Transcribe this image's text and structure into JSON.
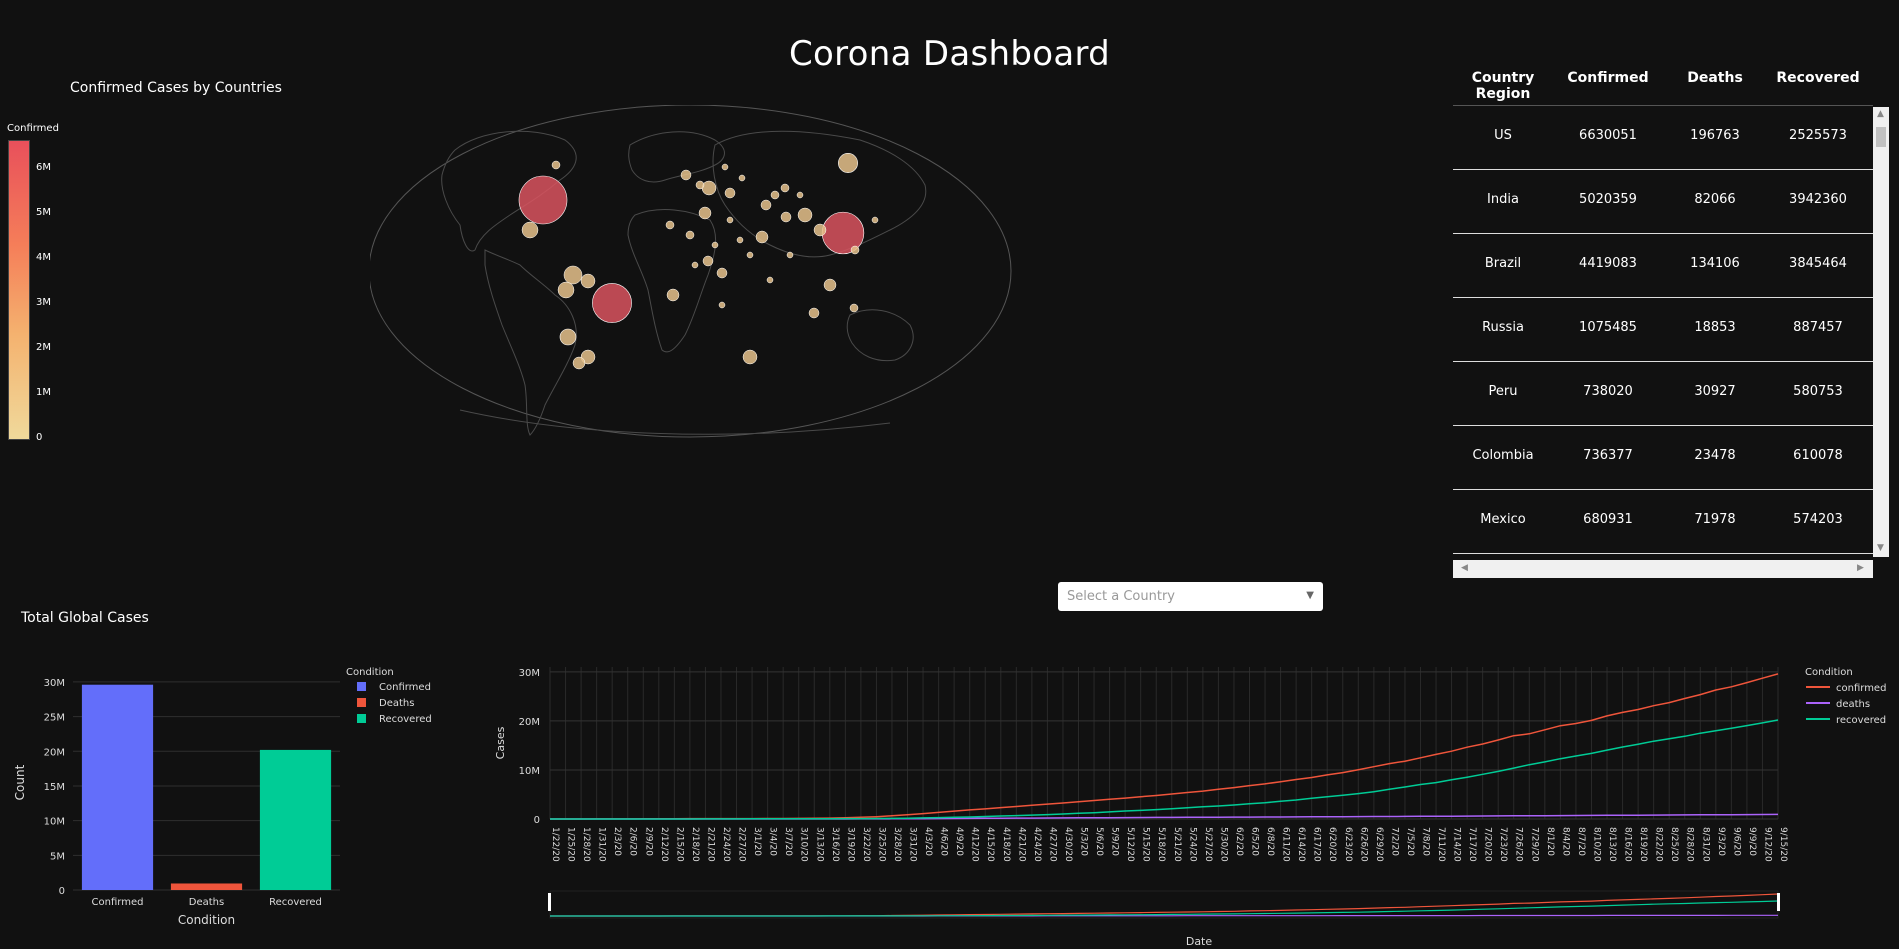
{
  "header": {
    "title": "Corona Dashboard"
  },
  "map": {
    "title": "Confirmed Cases by Countries",
    "colorbar_title": "Confirmed",
    "colorbar_ticks": [
      "6M",
      "5M",
      "4M",
      "3M",
      "2M",
      "1M",
      "0"
    ]
  },
  "table": {
    "columns": [
      "Country Region",
      "Confirmed",
      "Deaths",
      "Recovered"
    ],
    "rows": [
      [
        "US",
        "6630051",
        "196763",
        "2525573"
      ],
      [
        "India",
        "5020359",
        "82066",
        "3942360"
      ],
      [
        "Brazil",
        "4419083",
        "134106",
        "3845464"
      ],
      [
        "Russia",
        "1075485",
        "18853",
        "887457"
      ],
      [
        "Peru",
        "738020",
        "30927",
        "580753"
      ],
      [
        "Colombia",
        "736377",
        "23478",
        "610078"
      ],
      [
        "Mexico",
        "680931",
        "71978",
        "574203"
      ]
    ]
  },
  "selector": {
    "placeholder": "Select a Country"
  },
  "bar_panel": {
    "title": "Total Global Cases"
  },
  "chart_data": [
    {
      "type": "bar",
      "categories": [
        "Confirmed",
        "Deaths",
        "Recovered"
      ],
      "values": [
        29600000,
        940000,
        20200000
      ],
      "colors": [
        "#636efa",
        "#ef553b",
        "#00cc96"
      ],
      "xlabel": "Condition",
      "ylabel": "Count",
      "ylim": [
        0,
        31000000
      ],
      "yticks": [
        0,
        5000000,
        10000000,
        15000000,
        20000000,
        25000000,
        30000000
      ],
      "ytick_labels": [
        "0",
        "5M",
        "10M",
        "15M",
        "20M",
        "25M",
        "30M"
      ],
      "legend_title": "Condition",
      "legend": [
        "Confirmed",
        "Deaths",
        "Recovered"
      ],
      "legend_placement": "right"
    },
    {
      "type": "line",
      "x_dates": [
        "1/22/20",
        "1/25/20",
        "1/28/20",
        "1/31/20",
        "2/3/20",
        "2/6/20",
        "2/9/20",
        "2/12/20",
        "2/15/20",
        "2/18/20",
        "2/21/20",
        "2/24/20",
        "2/27/20",
        "3/1/20",
        "3/4/20",
        "3/7/20",
        "3/10/20",
        "3/13/20",
        "3/16/20",
        "3/19/20",
        "3/22/20",
        "3/25/20",
        "3/28/20",
        "3/31/20",
        "4/3/20",
        "4/6/20",
        "4/9/20",
        "4/12/20",
        "4/15/20",
        "4/18/20",
        "4/21/20",
        "4/24/20",
        "4/27/20",
        "4/30/20",
        "5/3/20",
        "5/6/20",
        "5/9/20",
        "5/12/20",
        "5/15/20",
        "5/18/20",
        "5/21/20",
        "5/24/20",
        "5/27/20",
        "5/30/20",
        "6/2/20",
        "6/5/20",
        "6/8/20",
        "6/11/20",
        "6/14/20",
        "6/17/20",
        "6/20/20",
        "6/23/20",
        "6/26/20",
        "6/29/20",
        "7/2/20",
        "7/5/20",
        "7/8/20",
        "7/11/20",
        "7/14/20",
        "7/17/20",
        "7/20/20",
        "7/23/20",
        "7/26/20",
        "7/29/20",
        "8/1/20",
        "8/4/20",
        "8/7/20",
        "8/10/20",
        "8/13/20",
        "8/16/20",
        "8/19/20",
        "8/22/20",
        "8/25/20",
        "8/28/20",
        "8/31/20",
        "9/3/20",
        "9/6/20",
        "9/9/20",
        "9/12/20",
        "9/15/20"
      ],
      "series": [
        {
          "name": "confirmed",
          "color": "#ef553b",
          "values": [
            0.0006,
            0.0021,
            0.0061,
            0.0113,
            0.02,
            0.0281,
            0.0404,
            0.0455,
            0.0686,
            0.0754,
            0.0771,
            0.0793,
            0.0829,
            0.0878,
            0.0951,
            0.1081,
            0.119,
            0.1453,
            0.1802,
            0.243,
            0.3404,
            0.4679,
            0.6624,
            0.8562,
            1.0965,
            1.3467,
            1.6048,
            1.8477,
            2.0563,
            2.3319,
            2.551,
            2.8091,
            3.048,
            3.2696,
            3.5028,
            3.766,
            4.0138,
            4.2548,
            4.5462,
            4.8011,
            5.0998,
            5.409,
            5.6925,
            6.0566,
            6.3945,
            6.817,
            7.1658,
            7.6046,
            8.0485,
            8.4735,
            8.9995,
            9.46,
            10.033,
            10.666,
            11.293,
            11.784,
            12.49,
            13.178,
            13.827,
            14.637,
            15.304,
            16.105,
            16.988,
            17.379,
            18.201,
            19.033,
            19.481,
            20.102,
            21.035,
            21.745,
            22.333,
            23.104,
            23.746,
            24.584,
            25.372,
            26.317,
            26.956,
            27.812,
            28.712,
            29.6
          ]
        },
        {
          "name": "deaths",
          "color": "#ab63fa",
          "values": [
            0,
            0,
            0,
            0,
            0,
            0,
            0,
            0,
            0,
            0,
            0,
            0,
            0,
            0,
            0,
            0,
            0,
            0,
            0.006,
            0.009,
            0.015,
            0.021,
            0.031,
            0.042,
            0.06,
            0.075,
            0.095,
            0.114,
            0.134,
            0.158,
            0.174,
            0.192,
            0.208,
            0.227,
            0.242,
            0.26,
            0.275,
            0.287,
            0.303,
            0.317,
            0.33,
            0.342,
            0.355,
            0.368,
            0.38,
            0.394,
            0.405,
            0.418,
            0.43,
            0.445,
            0.46,
            0.475,
            0.49,
            0.505,
            0.517,
            0.53,
            0.548,
            0.563,
            0.578,
            0.595,
            0.61,
            0.628,
            0.645,
            0.663,
            0.68,
            0.698,
            0.713,
            0.73,
            0.75,
            0.765,
            0.781,
            0.799,
            0.815,
            0.832,
            0.848,
            0.864,
            0.88,
            0.898,
            0.917,
            0.94
          ]
        },
        {
          "name": "recovered",
          "color": "#00cc96",
          "values": [
            0,
            0,
            0,
            0,
            0,
            0,
            0.001,
            0.002,
            0.004,
            0.008,
            0.015,
            0.022,
            0.03,
            0.04,
            0.05,
            0.056,
            0.06,
            0.064,
            0.069,
            0.074,
            0.09,
            0.11,
            0.13,
            0.165,
            0.223,
            0.277,
            0.338,
            0.415,
            0.518,
            0.608,
            0.695,
            0.786,
            0.9,
            1.015,
            1.157,
            1.288,
            1.454,
            1.634,
            1.755,
            1.918,
            2.104,
            2.282,
            2.502,
            2.651,
            2.857,
            3.102,
            3.305,
            3.626,
            3.88,
            4.213,
            4.518,
            4.835,
            5.186,
            5.577,
            6.055,
            6.533,
            7.04,
            7.431,
            7.99,
            8.524,
            9.11,
            9.714,
            10.39,
            11.071,
            11.649,
            12.294,
            12.839,
            13.389,
            14.055,
            14.687,
            15.26,
            15.868,
            16.377,
            16.859,
            17.499,
            18.007,
            18.503,
            19.043,
            19.593,
            20.2
          ]
        }
      ],
      "values_unit": "millions",
      "xlabel": "Date",
      "ylabel": "Cases",
      "ylim": [
        0,
        31
      ],
      "ytick_labels": [
        "0",
        "10M",
        "20M",
        "30M"
      ],
      "legend_title": "Condition",
      "legend": [
        "confirmed",
        "deaths",
        "recovered"
      ],
      "legend_placement": "right",
      "grid": true,
      "range_slider": true
    }
  ],
  "map_bubbles": {
    "us": 6630051,
    "india": 5020359,
    "brazil": 4419083,
    "russia": 1075485,
    "peru": 738020
  }
}
